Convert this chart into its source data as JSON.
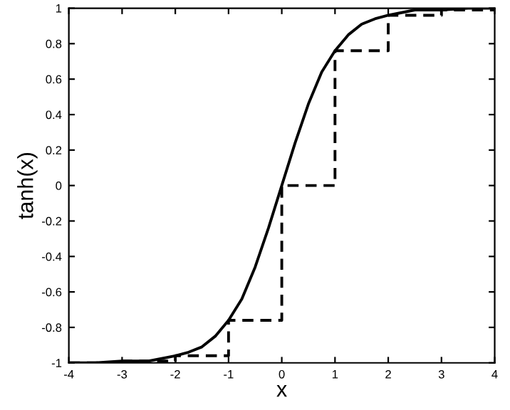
{
  "chart_data": {
    "type": "line",
    "xlabel": "x",
    "ylabel": "tanh(x)",
    "xlim": [
      -4,
      4
    ],
    "xticks": [
      -4,
      -3,
      -2,
      -1,
      0,
      1,
      2,
      3,
      4
    ],
    "ylim": [
      -1,
      1
    ],
    "yticks": [
      -1,
      -0.8,
      -0.6,
      -0.4,
      -0.2,
      0,
      0.2,
      0.4,
      0.6,
      0.8,
      1
    ],
    "grid": false,
    "legend": false,
    "marker": "none",
    "series": [
      {
        "color": "#000000",
        "line_style": "solid",
        "x": [
          -4,
          -3.5,
          -3,
          -2.5,
          -2,
          -1.75,
          -1.5,
          -1.25,
          -1,
          -0.75,
          -0.5,
          -0.25,
          0,
          0.25,
          0.5,
          0.75,
          1,
          1.25,
          1.5,
          1.75,
          2,
          2.5,
          3,
          3.5,
          4
        ],
        "values": [
          -1,
          -1,
          -0.99,
          -0.99,
          -0.96,
          -0.94,
          -0.91,
          -0.85,
          -0.76,
          -0.64,
          -0.46,
          -0.24,
          0,
          0.24,
          0.46,
          0.64,
          0.76,
          0.85,
          0.91,
          0.94,
          0.96,
          0.99,
          0.99,
          1,
          1
        ]
      },
      {
        "type": "step",
        "color": "#000000",
        "line_style": "dashed",
        "x": [
          -4,
          -3,
          -2,
          -1,
          0,
          1,
          2,
          3,
          4
        ],
        "values": [
          -1,
          -0.99,
          -0.96,
          -0.76,
          0,
          0.76,
          0.96,
          0.99,
          1
        ]
      }
    ]
  }
}
